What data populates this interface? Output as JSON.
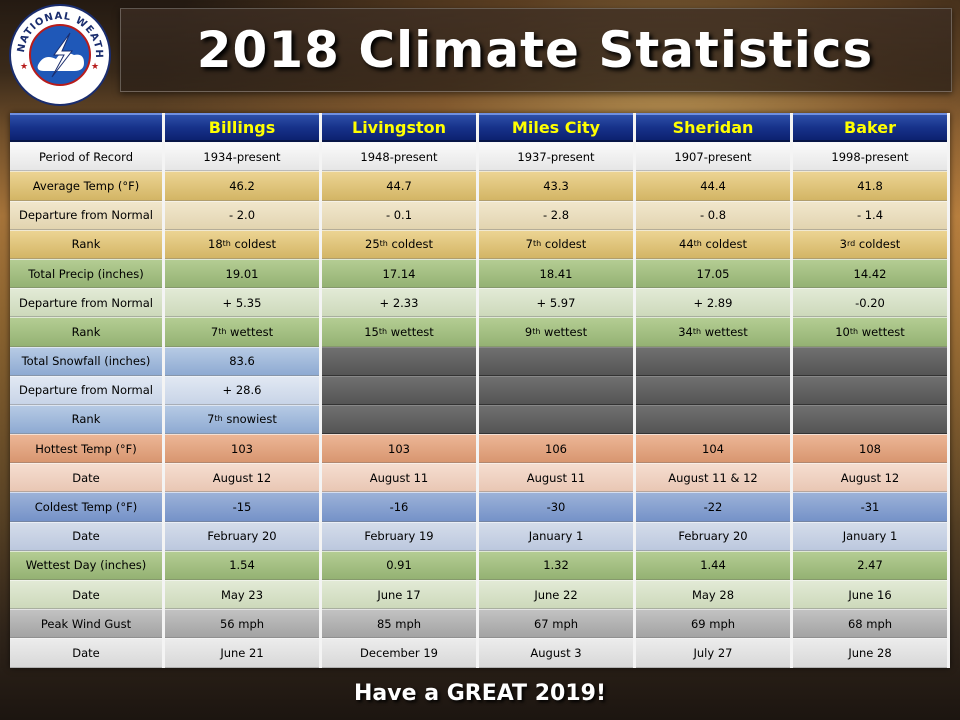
{
  "title": "2018 Climate Statistics",
  "logo": {
    "arc_text": "NATIONAL WEATHER SERVICE",
    "icon": "nws-logo-icon"
  },
  "footer": "Have a GREAT 2019!",
  "colors": {
    "header_bg": "#17328a",
    "header_text": "#ffff00",
    "no_data": "#5e5e5e"
  },
  "table": {
    "columns": [
      "Billings",
      "Livingston",
      "Miles City",
      "Sheridan",
      "Baker"
    ],
    "rows": [
      {
        "label": "Period of Record",
        "tone": "white",
        "cells": [
          {
            "v": "1934-present"
          },
          {
            "v": "1948-present"
          },
          {
            "v": "1937-present"
          },
          {
            "v": "1907-present"
          },
          {
            "v": "1998-present"
          }
        ]
      },
      {
        "label": "Average Temp (°F)",
        "tone": "yellow",
        "cells": [
          {
            "v": "46.2"
          },
          {
            "v": "44.7"
          },
          {
            "v": "43.3"
          },
          {
            "v": "44.4"
          },
          {
            "v": "41.8"
          }
        ]
      },
      {
        "label": "Departure from Normal",
        "tone": "lyellow",
        "cells": [
          {
            "v": "- 2.0"
          },
          {
            "v": "- 0.1"
          },
          {
            "v": "- 2.8"
          },
          {
            "v": "- 0.8"
          },
          {
            "v": "- 1.4"
          }
        ]
      },
      {
        "label": "Rank",
        "tone": "yellow",
        "cells": [
          {
            "n": "18",
            "sup": "th",
            "s": " coldest"
          },
          {
            "n": "25",
            "sup": "th",
            "s": " coldest"
          },
          {
            "n": "7",
            "sup": "th",
            "s": " coldest"
          },
          {
            "n": "44",
            "sup": "th",
            "s": " coldest"
          },
          {
            "n": "3",
            "sup": "rd",
            "s": " coldest"
          }
        ]
      },
      {
        "label": "Total Precip (inches)",
        "tone": "green",
        "cells": [
          {
            "v": "19.01"
          },
          {
            "v": "17.14"
          },
          {
            "v": "18.41"
          },
          {
            "v": "17.05"
          },
          {
            "v": "14.42"
          }
        ]
      },
      {
        "label": "Departure from Normal",
        "tone": "lgreen",
        "cells": [
          {
            "v": "+ 5.35"
          },
          {
            "v": "+ 2.33"
          },
          {
            "v": "+ 5.97"
          },
          {
            "v": "+ 2.89"
          },
          {
            "v": "-0.20"
          }
        ]
      },
      {
        "label": "Rank",
        "tone": "green",
        "cells": [
          {
            "n": "7",
            "sup": "th",
            "s": " wettest"
          },
          {
            "n": "15",
            "sup": "th",
            "s": " wettest"
          },
          {
            "n": "9",
            "sup": "th",
            "s": " wettest"
          },
          {
            "n": "34",
            "sup": "th",
            "s": " wettest"
          },
          {
            "n": "10",
            "sup": "th",
            "s": " wettest"
          }
        ]
      },
      {
        "label": "Total Snowfall (inches)",
        "tone": "blue",
        "cells": [
          {
            "v": "83.6"
          },
          {
            "empty": true
          },
          {
            "empty": true
          },
          {
            "empty": true
          },
          {
            "empty": true
          }
        ]
      },
      {
        "label": "Departure from Normal",
        "tone": "lblue",
        "cells": [
          {
            "v": "+ 28.6"
          },
          {
            "empty": true
          },
          {
            "empty": true
          },
          {
            "empty": true
          },
          {
            "empty": true
          }
        ]
      },
      {
        "label": "Rank",
        "tone": "blue",
        "cells": [
          {
            "n": "7",
            "sup": "th",
            "s": " snowiest"
          },
          {
            "empty": true
          },
          {
            "empty": true
          },
          {
            "empty": true
          },
          {
            "empty": true
          }
        ]
      },
      {
        "label": "Hottest Temp (°F)",
        "tone": "orange",
        "cells": [
          {
            "v": "103"
          },
          {
            "v": "103"
          },
          {
            "v": "106"
          },
          {
            "v": "104"
          },
          {
            "v": "108"
          }
        ]
      },
      {
        "label": "Date",
        "tone": "lorange",
        "cells": [
          {
            "v": "August 12"
          },
          {
            "v": "August 11"
          },
          {
            "v": "August 11"
          },
          {
            "v": "August 11 & 12"
          },
          {
            "v": "August 12"
          }
        ]
      },
      {
        "label": "Coldest Temp (°F)",
        "tone": "sblue",
        "cells": [
          {
            "v": "-15"
          },
          {
            "v": "-16"
          },
          {
            "v": "-30"
          },
          {
            "v": "-22"
          },
          {
            "v": "-31"
          }
        ]
      },
      {
        "label": "Date",
        "tone": "slblue",
        "cells": [
          {
            "v": "February 20"
          },
          {
            "v": "February 19"
          },
          {
            "v": "January 1"
          },
          {
            "v": "February 20"
          },
          {
            "v": "January 1"
          }
        ]
      },
      {
        "label": "Wettest Day (inches)",
        "tone": "green",
        "cells": [
          {
            "v": "1.54"
          },
          {
            "v": "0.91"
          },
          {
            "v": "1.32"
          },
          {
            "v": "1.44"
          },
          {
            "v": "2.47"
          }
        ]
      },
      {
        "label": "Date",
        "tone": "lgreen",
        "cells": [
          {
            "v": "May 23"
          },
          {
            "v": "June 17"
          },
          {
            "v": "June 22"
          },
          {
            "v": "May 28"
          },
          {
            "v": "June 16"
          }
        ]
      },
      {
        "label": "Peak Wind Gust",
        "tone": "grey",
        "cells": [
          {
            "v": "56 mph"
          },
          {
            "v": "85 mph"
          },
          {
            "v": "67 mph"
          },
          {
            "v": "69 mph"
          },
          {
            "v": "68 mph"
          }
        ]
      },
      {
        "label": "Date",
        "tone": "lgrey",
        "cells": [
          {
            "v": "June 21"
          },
          {
            "v": "December 19"
          },
          {
            "v": "August 3"
          },
          {
            "v": "July 27"
          },
          {
            "v": "June 28"
          }
        ]
      }
    ]
  }
}
